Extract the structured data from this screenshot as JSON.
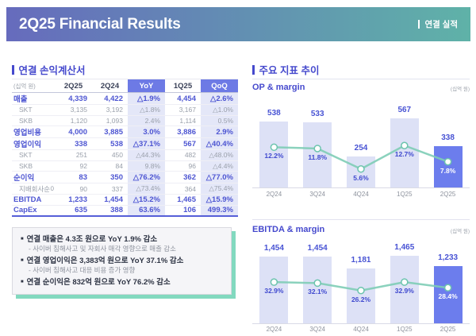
{
  "header": {
    "title": "2Q25 Financial Results",
    "right_label": "연결 실적"
  },
  "income_statement": {
    "section_title": "연결 손익계산서",
    "unit_label": "(십억 원)",
    "columns": [
      "2Q25",
      "2Q24",
      "YoY",
      "1Q25",
      "QoQ"
    ],
    "rows": [
      {
        "label": "매출",
        "style": "primary",
        "values": [
          "4,339",
          "4,422",
          "△1.9%",
          "4,454",
          "△2.6%"
        ]
      },
      {
        "label": "SKT",
        "style": "sub",
        "values": [
          "3,135",
          "3,192",
          "△1.8%",
          "3,167",
          "△1.0%"
        ]
      },
      {
        "label": "SKB",
        "style": "sub",
        "values": [
          "1,120",
          "1,093",
          "2.4%",
          "1,114",
          "0.5%"
        ]
      },
      {
        "label": "영업비용",
        "style": "primary",
        "values": [
          "4,000",
          "3,885",
          "3.0%",
          "3,886",
          "2.9%"
        ]
      },
      {
        "label": "영업이익",
        "style": "primary",
        "values": [
          "338",
          "538",
          "△37.1%",
          "567",
          "△40.4%"
        ]
      },
      {
        "label": "SKT",
        "style": "sub",
        "values": [
          "251",
          "450",
          "△44.3%",
          "482",
          "△48.0%"
        ]
      },
      {
        "label": "SKB",
        "style": "sub",
        "values": [
          "92",
          "84",
          "9.8%",
          "96",
          "△4.4%"
        ]
      },
      {
        "label": "순이익",
        "style": "primary",
        "values": [
          "83",
          "350",
          "△76.2%",
          "362",
          "△77.0%"
        ]
      },
      {
        "label": "지배회사순이익",
        "style": "sub",
        "values": [
          "90",
          "337",
          "△73.4%",
          "364",
          "△75.4%"
        ]
      },
      {
        "label": "EBITDA",
        "style": "primary",
        "emphasis_border": true,
        "values": [
          "1,233",
          "1,454",
          "△15.2%",
          "1,465",
          "△15.9%"
        ]
      },
      {
        "label": "CapEx",
        "style": "primary",
        "values": [
          "635",
          "388",
          "63.6%",
          "106",
          "499.3%"
        ]
      }
    ]
  },
  "notes": [
    {
      "text": "연결 매출은 4.3조 원으로 YoY 1.9% 감소",
      "sub": "- 사이버 침해사고 및 자회사 매각 영향으로 매출 감소"
    },
    {
      "text": "연결 영업이익은 3,383억 원으로 YoY 37.1% 감소",
      "sub": "- 사이버 침해사고 대응 비용 증가 영향"
    },
    {
      "text": "연결 순이익은 832억 원으로 YoY 76.2% 감소",
      "sub": null
    }
  ],
  "trends": {
    "section_title": "주요 지표 추이"
  },
  "chart_data": [
    {
      "type": "bar+line",
      "title": "OP & margin",
      "unit_label": "(십억 원)",
      "categories": [
        "2Q24",
        "3Q24",
        "4Q24",
        "1Q25",
        "2Q25"
      ],
      "series": [
        {
          "name": "OP",
          "type": "bar",
          "values": [
            538,
            533,
            254,
            567,
            338
          ],
          "labels": [
            "538",
            "533",
            "254",
            "567",
            "338"
          ]
        },
        {
          "name": "OP margin",
          "type": "line",
          "values": [
            12.2,
            11.8,
            5.6,
            12.7,
            7.8
          ],
          "labels": [
            "12.2%",
            "11.8%",
            "5.6%",
            "12.7%",
            "7.8%"
          ]
        }
      ],
      "highlight_index": 4,
      "ylim": [
        0,
        700
      ],
      "line_ylim": [
        0,
        26
      ],
      "grid": false,
      "legend": "none"
    },
    {
      "type": "bar+line",
      "title": "EBITDA & margin",
      "unit_label": "(십억 원)",
      "categories": [
        "2Q24",
        "3Q24",
        "4Q24",
        "1Q25",
        "2Q25"
      ],
      "series": [
        {
          "name": "EBITDA",
          "type": "bar",
          "values": [
            1454,
            1454,
            1181,
            1465,
            1233
          ],
          "labels": [
            "1,454",
            "1,454",
            "1,181",
            "1,465",
            "1,233"
          ]
        },
        {
          "name": "EBITDA margin",
          "type": "line",
          "values": [
            32.9,
            32.1,
            26.2,
            32.9,
            28.4
          ],
          "labels": [
            "32.9%",
            "32.1%",
            "26.2%",
            "32.9%",
            "28.4%"
          ]
        }
      ],
      "highlight_index": 4,
      "ylim": [
        0,
        1790
      ],
      "line_ylim": [
        0,
        66
      ],
      "grid": false,
      "legend": "none"
    }
  ],
  "colors": {
    "header_gradient_left": "#666bbd",
    "header_gradient_right": "#5fb2a8",
    "accent": "#4549cd",
    "table_value_text": "#4d55d2",
    "column_header_bg": "#6d7ae5",
    "column_band_bg": "#e4e7f8",
    "bar_default": "#dde1f6",
    "bar_highlight": "#6c7ded",
    "line": "#7ecdb6",
    "marker_stroke": "#6cc4ae",
    "note_shadow": "#82d9bf",
    "muted_text": "#8d929d"
  }
}
